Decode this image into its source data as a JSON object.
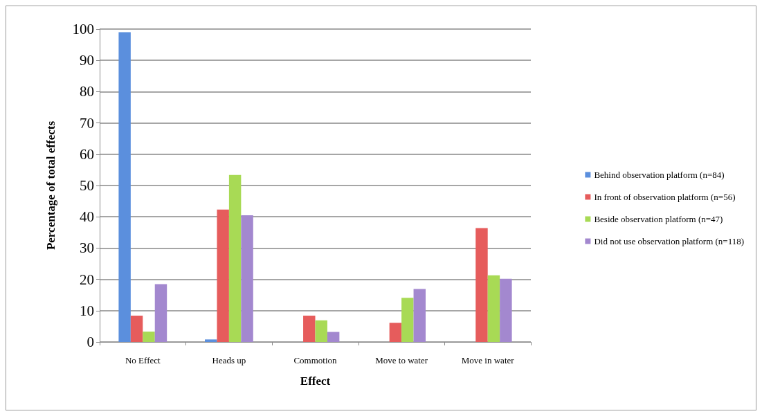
{
  "chart_data": {
    "type": "bar",
    "xlabel": "Effect",
    "ylabel": "Percentage of total effects",
    "categories": [
      "No Effect",
      "Heads up",
      "Commotion",
      "Move to water",
      "Move in water"
    ],
    "series": [
      {
        "name": "Behind observation platform (n=84)",
        "color": "#5b8fdd",
        "values": [
          99,
          0.8,
          0,
          0,
          0
        ]
      },
      {
        "name": "In front of observation platform (n=56)",
        "color": "#e65c5c",
        "values": [
          8.4,
          42.3,
          8.4,
          6.1,
          36.4
        ]
      },
      {
        "name": "Beside observation platform (n=47)",
        "color": "#a8da55",
        "values": [
          3.3,
          53.4,
          6.9,
          14.1,
          21.3
        ]
      },
      {
        "name": "Did not use observation platform (n=118)",
        "color": "#a388cf",
        "values": [
          18.5,
          40.5,
          3.2,
          16.9,
          20.2
        ]
      }
    ],
    "ylim": [
      0,
      100
    ],
    "yticks": [
      0,
      10,
      20,
      30,
      40,
      50,
      60,
      70,
      80,
      90,
      100
    ],
    "grid": "y",
    "legend": "right"
  }
}
